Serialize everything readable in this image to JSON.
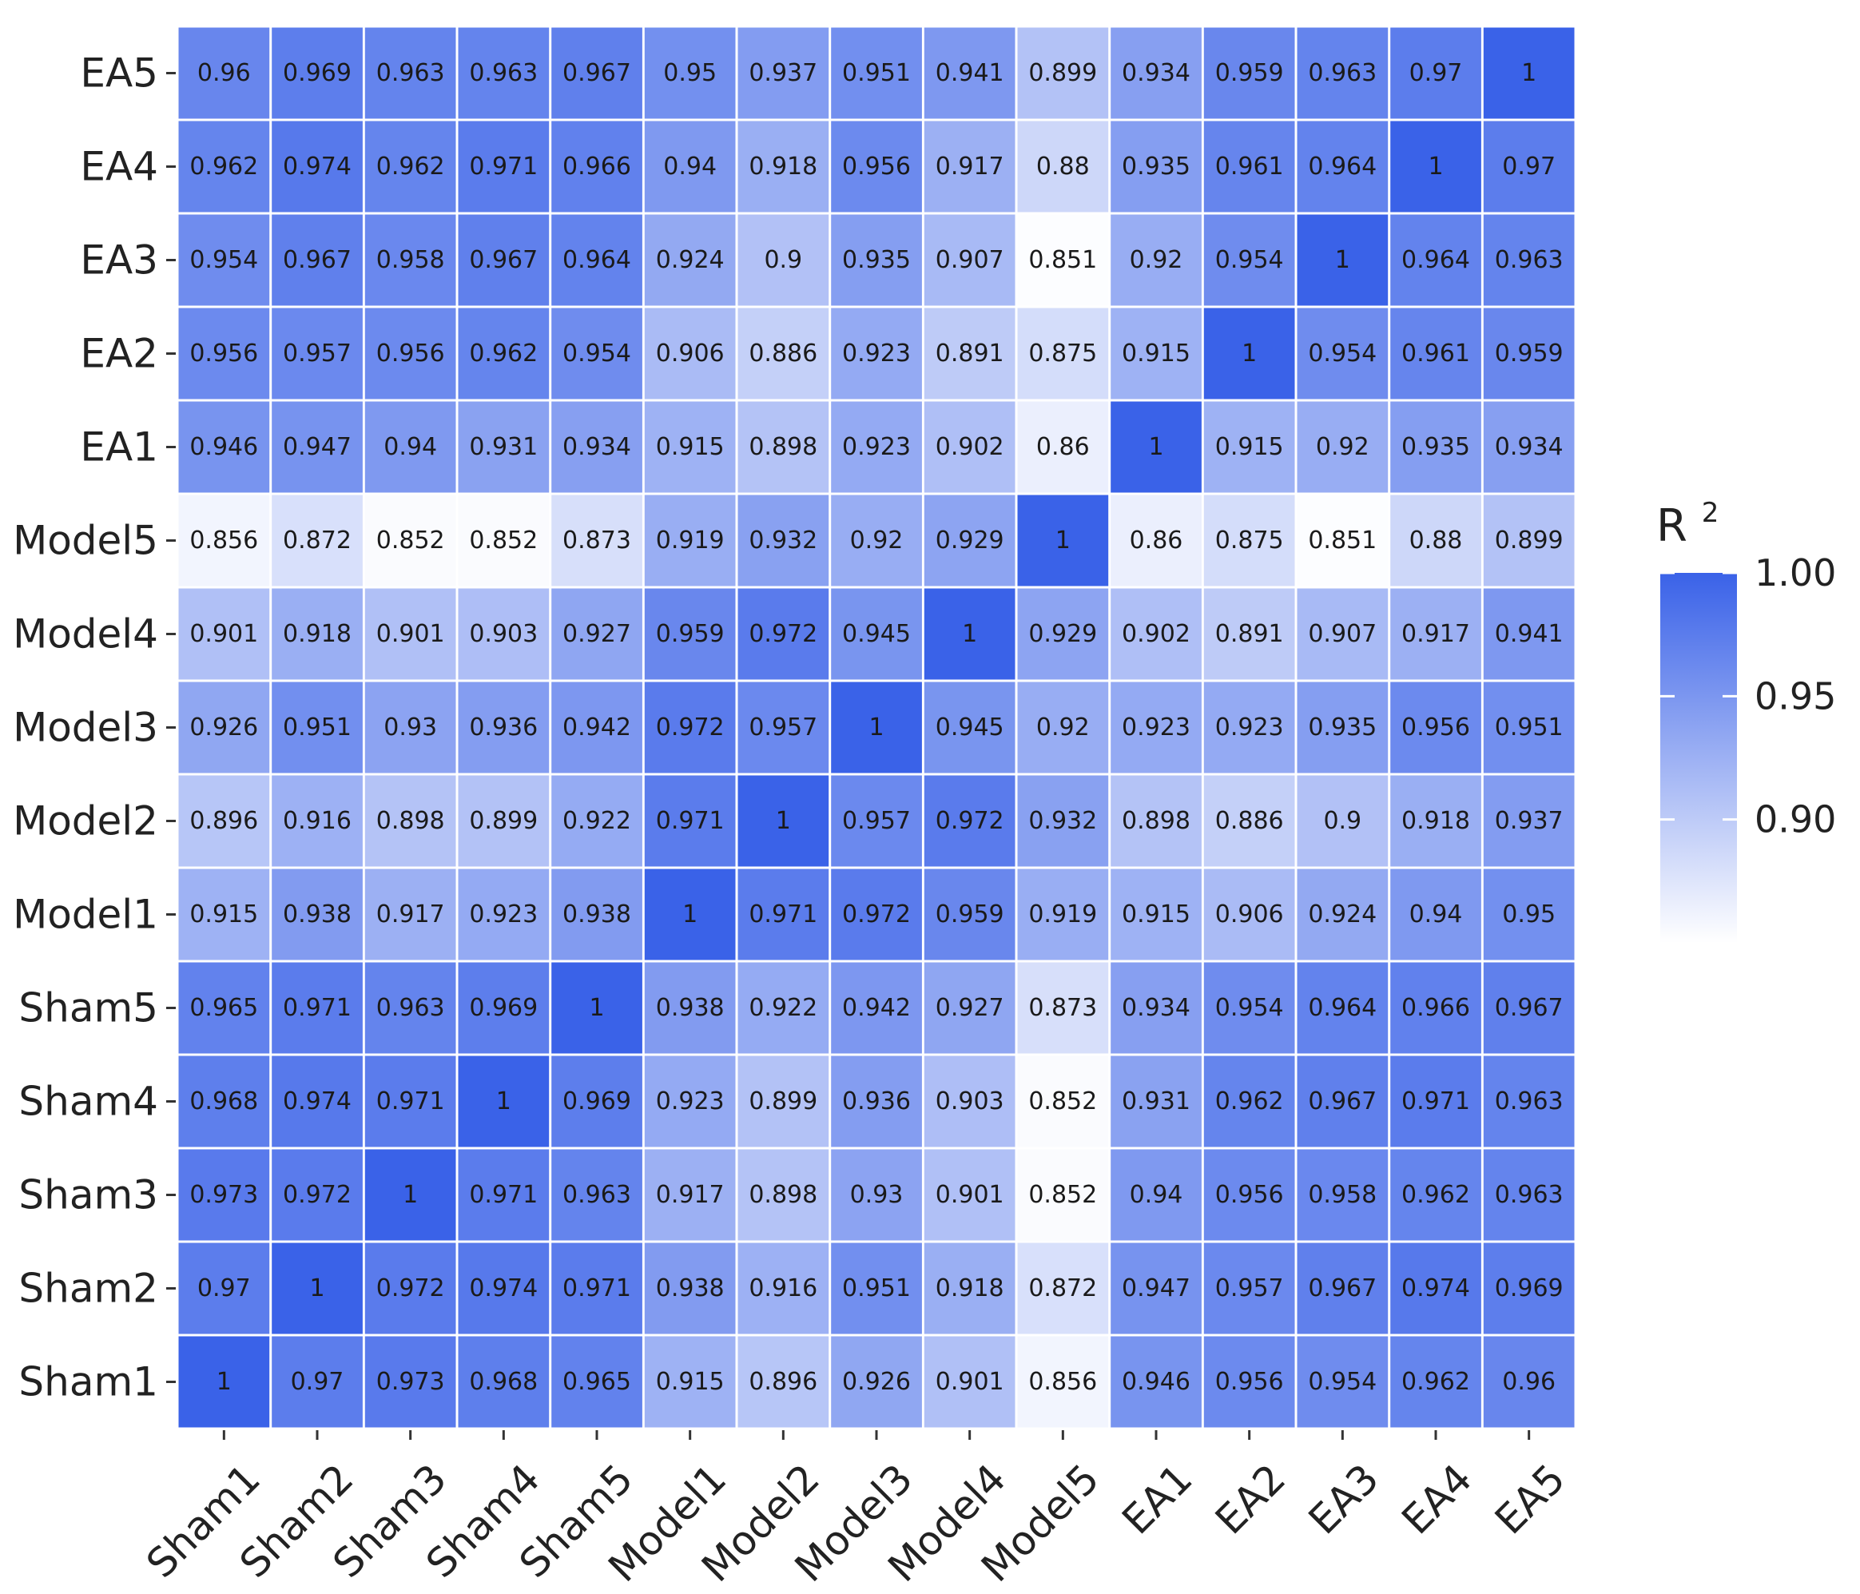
{
  "chart_data": {
    "type": "heatmap",
    "x_categories": [
      "Sham1",
      "Sham2",
      "Sham3",
      "Sham4",
      "Sham5",
      "Model1",
      "Model2",
      "Model3",
      "Model4",
      "Model5",
      "EA1",
      "EA2",
      "EA3",
      "EA4",
      "EA5"
    ],
    "y_categories": [
      "Sham1",
      "Sham2",
      "Sham3",
      "Sham4",
      "Sham5",
      "Model1",
      "Model2",
      "Model3",
      "Model4",
      "Model5",
      "EA1",
      "EA2",
      "EA3",
      "EA4",
      "EA5"
    ],
    "values": [
      [
        "1",
        "0.97",
        "0.973",
        "0.968",
        "0.965",
        "0.915",
        "0.896",
        "0.926",
        "0.901",
        "0.856",
        "0.946",
        "0.956",
        "0.954",
        "0.962",
        "0.96"
      ],
      [
        "0.97",
        "1",
        "0.972",
        "0.974",
        "0.971",
        "0.938",
        "0.916",
        "0.951",
        "0.918",
        "0.872",
        "0.947",
        "0.957",
        "0.967",
        "0.974",
        "0.969"
      ],
      [
        "0.973",
        "0.972",
        "1",
        "0.971",
        "0.963",
        "0.917",
        "0.898",
        "0.93",
        "0.901",
        "0.852",
        "0.94",
        "0.956",
        "0.958",
        "0.962",
        "0.963"
      ],
      [
        "0.968",
        "0.974",
        "0.971",
        "1",
        "0.969",
        "0.923",
        "0.899",
        "0.936",
        "0.903",
        "0.852",
        "0.931",
        "0.962",
        "0.967",
        "0.971",
        "0.963"
      ],
      [
        "0.965",
        "0.971",
        "0.963",
        "0.969",
        "1",
        "0.938",
        "0.922",
        "0.942",
        "0.927",
        "0.873",
        "0.934",
        "0.954",
        "0.964",
        "0.966",
        "0.967"
      ],
      [
        "0.915",
        "0.938",
        "0.917",
        "0.923",
        "0.938",
        "1",
        "0.971",
        "0.972",
        "0.959",
        "0.919",
        "0.915",
        "0.906",
        "0.924",
        "0.94",
        "0.95"
      ],
      [
        "0.896",
        "0.916",
        "0.898",
        "0.899",
        "0.922",
        "0.971",
        "1",
        "0.957",
        "0.972",
        "0.932",
        "0.898",
        "0.886",
        "0.9",
        "0.918",
        "0.937"
      ],
      [
        "0.926",
        "0.951",
        "0.93",
        "0.936",
        "0.942",
        "0.972",
        "0.957",
        "1",
        "0.945",
        "0.92",
        "0.923",
        "0.923",
        "0.935",
        "0.956",
        "0.951"
      ],
      [
        "0.901",
        "0.918",
        "0.901",
        "0.903",
        "0.927",
        "0.959",
        "0.972",
        "0.945",
        "1",
        "0.929",
        "0.902",
        "0.891",
        "0.907",
        "0.917",
        "0.941"
      ],
      [
        "0.856",
        "0.872",
        "0.852",
        "0.852",
        "0.873",
        "0.919",
        "0.932",
        "0.92",
        "0.929",
        "1",
        "0.86",
        "0.875",
        "0.851",
        "0.88",
        "0.899"
      ],
      [
        "0.946",
        "0.947",
        "0.94",
        "0.931",
        "0.934",
        "0.915",
        "0.898",
        "0.923",
        "0.902",
        "0.86",
        "1",
        "0.915",
        "0.92",
        "0.935",
        "0.934"
      ],
      [
        "0.956",
        "0.957",
        "0.956",
        "0.962",
        "0.954",
        "0.906",
        "0.886",
        "0.923",
        "0.891",
        "0.875",
        "0.915",
        "1",
        "0.954",
        "0.961",
        "0.959"
      ],
      [
        "0.954",
        "0.967",
        "0.958",
        "0.967",
        "0.964",
        "0.924",
        "0.9",
        "0.935",
        "0.907",
        "0.851",
        "0.92",
        "0.954",
        "1",
        "0.964",
        "0.963"
      ],
      [
        "0.962",
        "0.974",
        "0.962",
        "0.971",
        "0.966",
        "0.94",
        "0.918",
        "0.956",
        "0.917",
        "0.88",
        "0.935",
        "0.961",
        "0.964",
        "1",
        "0.97"
      ],
      [
        "0.96",
        "0.969",
        "0.963",
        "0.963",
        "0.967",
        "0.95",
        "0.937",
        "0.951",
        "0.941",
        "0.899",
        "0.934",
        "0.959",
        "0.963",
        "0.97",
        "1"
      ]
    ],
    "legend": {
      "title": "R",
      "title_superscript": "2",
      "ticks": [
        "1.00",
        "0.95",
        "0.90"
      ],
      "tick_values": [
        1.0,
        0.95,
        0.9
      ],
      "range": [
        0.85,
        1.0
      ],
      "placement": "right"
    },
    "color_low": "#ffffff",
    "color_high": "#3a62e8",
    "grid": false
  }
}
